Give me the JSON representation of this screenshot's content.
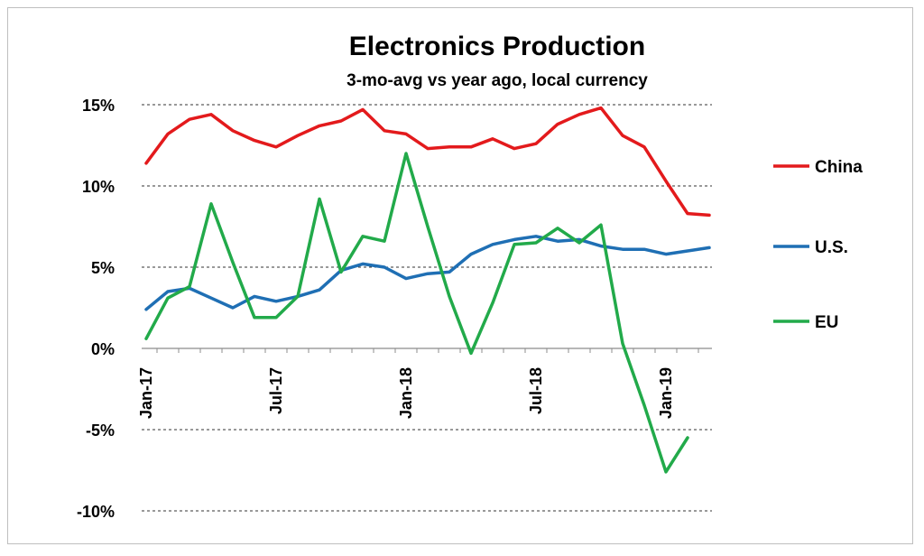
{
  "chart_data": {
    "type": "line",
    "title": "Electronics Production",
    "subtitle": "3-mo-avg vs year ago, local currency",
    "xlabel": "",
    "ylabel": "",
    "ylim": [
      -10,
      15
    ],
    "yticks": [
      15,
      10,
      5,
      0,
      -5,
      -10
    ],
    "ytick_labels": [
      "15%",
      "10%",
      "5%",
      "0%",
      "-5%",
      "-10%"
    ],
    "x": [
      "Jan-17",
      "Feb-17",
      "Mar-17",
      "Apr-17",
      "May-17",
      "Jun-17",
      "Jul-17",
      "Aug-17",
      "Sep-17",
      "Oct-17",
      "Nov-17",
      "Dec-17",
      "Jan-18",
      "Feb-18",
      "Mar-18",
      "Apr-18",
      "May-18",
      "Jun-18",
      "Jul-18",
      "Aug-18",
      "Sep-18",
      "Oct-18",
      "Nov-18",
      "Dec-18",
      "Jan-19",
      "Feb-19",
      "Mar-19"
    ],
    "xtick_labels": [
      {
        "index": 0,
        "label": "Jan-17"
      },
      {
        "index": 6,
        "label": "Jul-17"
      },
      {
        "index": 12,
        "label": "Jan-18"
      },
      {
        "index": 18,
        "label": "Jul-18"
      },
      {
        "index": 24,
        "label": "Jan-19"
      }
    ],
    "grid": "horizontal dashed",
    "legend_position": "right",
    "series": [
      {
        "name": "China",
        "color": "#e31a1c",
        "values": [
          11.4,
          13.2,
          14.1,
          14.4,
          13.4,
          12.8,
          12.4,
          13.1,
          13.7,
          14.0,
          14.7,
          13.4,
          13.2,
          12.3,
          12.4,
          12.4,
          12.9,
          12.3,
          12.6,
          13.8,
          14.4,
          14.8,
          13.1,
          12.4,
          10.3,
          8.3,
          8.2
        ]
      },
      {
        "name": "U.S.",
        "color": "#1f6fb4",
        "values": [
          2.4,
          3.5,
          3.7,
          3.1,
          2.5,
          3.2,
          2.9,
          3.2,
          3.6,
          4.8,
          5.2,
          5.0,
          4.3,
          4.6,
          4.7,
          5.8,
          6.4,
          6.7,
          6.9,
          6.6,
          6.7,
          6.3,
          6.1,
          6.1,
          5.8,
          6.0,
          6.2
        ]
      },
      {
        "name": "EU",
        "color": "#22aa4a",
        "values": [
          0.6,
          3.1,
          3.8,
          8.9,
          5.3,
          1.9,
          1.9,
          3.2,
          9.2,
          4.7,
          6.9,
          6.6,
          12.0,
          7.5,
          3.2,
          -0.3,
          2.8,
          6.4,
          6.5,
          7.4,
          6.5,
          7.6,
          0.3,
          -3.5,
          -7.6,
          -5.5,
          null
        ]
      }
    ]
  }
}
